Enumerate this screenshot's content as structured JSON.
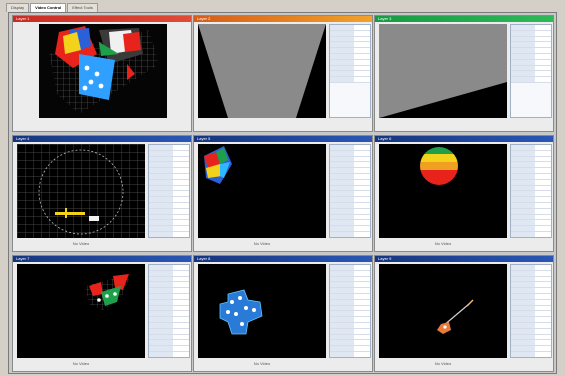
{
  "tabs": [
    {
      "label": "Display",
      "active": false
    },
    {
      "label": "Video Control",
      "active": true
    },
    {
      "label": "Effect Tools",
      "active": false
    }
  ],
  "colors": {
    "header_red": "#d43a2f",
    "header_orange": "#f08a20",
    "header_green": "#1ea04a",
    "header_blue": "#1a3f8f",
    "accent_cyan": "#2fb8ff",
    "accent_yellow": "#f2d21a"
  },
  "panels": [
    {
      "header": "Layer 1",
      "caption": ""
    },
    {
      "header": "Layer 2",
      "caption": ""
    },
    {
      "header": "Layer 3",
      "caption": ""
    },
    {
      "header": "Layer 4",
      "caption": "No Video"
    },
    {
      "header": "Layer 5",
      "caption": "No Video"
    },
    {
      "header": "Layer 6",
      "caption": "No Video"
    },
    {
      "header": "Layer 7",
      "caption": "No Video"
    },
    {
      "header": "Layer 8",
      "caption": "No Video"
    },
    {
      "header": "Layer 9",
      "caption": "No Video"
    }
  ]
}
